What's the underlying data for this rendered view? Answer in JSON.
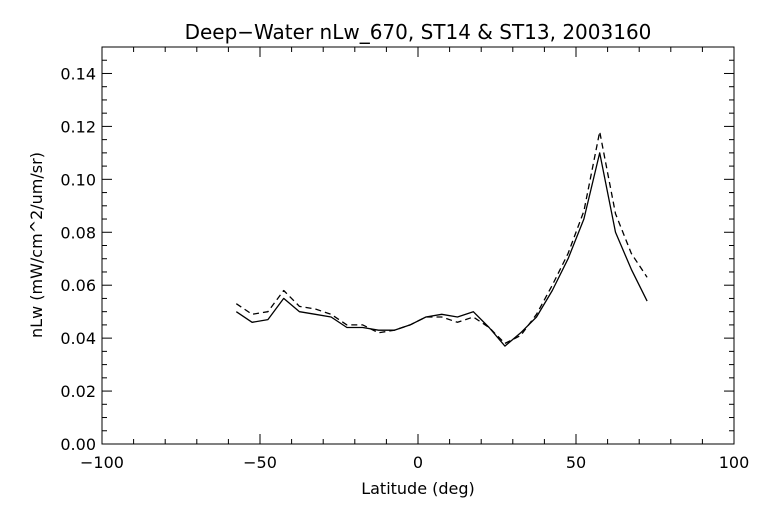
{
  "chart_data": {
    "type": "line",
    "title": "Deep−Water nLw_670, ST14 & ST13, 2003160",
    "xlabel": "Latitude (deg)",
    "ylabel": "nLw (mW/cm^2/um/sr)",
    "xlim": [
      -100,
      100
    ],
    "ylim": [
      0.0,
      0.15
    ],
    "x_ticks": [
      -100,
      -50,
      0,
      50,
      100
    ],
    "x_tick_labels": [
      "−100",
      "−50",
      "0",
      "50",
      "100"
    ],
    "y_ticks": [
      0.0,
      0.02,
      0.04,
      0.06,
      0.08,
      0.1,
      0.12,
      0.14
    ],
    "y_tick_labels": [
      "0.00",
      "0.02",
      "0.04",
      "0.06",
      "0.08",
      "0.10",
      "0.12",
      "0.14"
    ],
    "grid": false,
    "legend": "none",
    "series": [
      {
        "style": "solid",
        "x": [
          -57.5,
          -52.5,
          -47.5,
          -42.5,
          -37.5,
          -32.5,
          -27.5,
          -22.5,
          -17.5,
          -12.5,
          -7.5,
          -2.5,
          2.5,
          7.5,
          12.5,
          17.5,
          22.5,
          27.5,
          32.5,
          37.5,
          42.5,
          47.5,
          52.5,
          57.5,
          62.5,
          67.5,
          72.5
        ],
        "y": [
          0.05,
          0.046,
          0.047,
          0.055,
          0.05,
          0.049,
          0.048,
          0.044,
          0.044,
          0.043,
          0.043,
          0.045,
          0.048,
          0.049,
          0.048,
          0.05,
          0.044,
          0.037,
          0.042,
          0.048,
          0.058,
          0.07,
          0.085,
          0.11,
          0.08,
          0.066,
          0.054
        ]
      },
      {
        "style": "dashed",
        "x": [
          -57.5,
          -52.5,
          -47.5,
          -42.5,
          -37.5,
          -32.5,
          -27.5,
          -22.5,
          -17.5,
          -12.5,
          -7.5,
          -2.5,
          2.5,
          7.5,
          12.5,
          17.5,
          22.5,
          27.5,
          32.5,
          37.5,
          42.5,
          47.5,
          52.5,
          57.5,
          62.5,
          67.5,
          72.5
        ],
        "y": [
          0.053,
          0.049,
          0.05,
          0.058,
          0.052,
          0.051,
          0.049,
          0.045,
          0.045,
          0.042,
          0.043,
          0.045,
          0.048,
          0.048,
          0.046,
          0.048,
          0.044,
          0.038,
          0.041,
          0.049,
          0.06,
          0.072,
          0.088,
          0.118,
          0.087,
          0.072,
          0.063
        ]
      }
    ]
  }
}
